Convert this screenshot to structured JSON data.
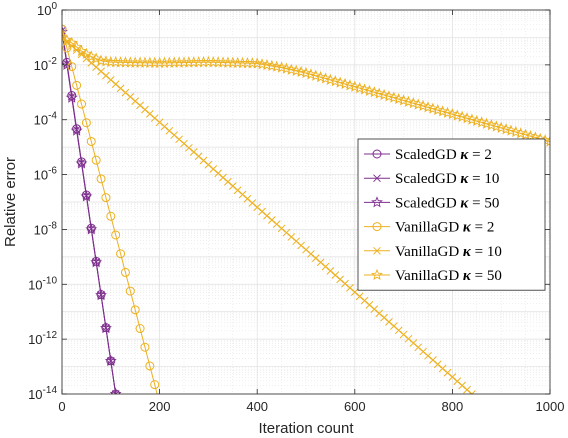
{
  "chart_data": {
    "type": "line",
    "xlabel": "Iteration count",
    "ylabel": "Relative error",
    "xlim": [
      0,
      1000
    ],
    "yscale": "log",
    "ylim_exp": [
      -14,
      0
    ],
    "x_ticks": [
      "0",
      "200",
      "400",
      "600",
      "800",
      "1000"
    ],
    "x_tick_values": [
      0,
      200,
      400,
      600,
      800,
      1000
    ],
    "y_tick_exponents": [
      0,
      -2,
      -4,
      -6,
      -8,
      -10,
      -12,
      -14
    ],
    "y_tick_base": "10",
    "grid": true,
    "minor_grid": true,
    "legend_position": "right",
    "colors": {
      "scaled": "#7e2f8e",
      "vanilla": "#edb120",
      "axis": "#262626",
      "grid": "#dfdfdf"
    },
    "series": [
      {
        "name": "ScaledGD",
        "kappa": "2",
        "color": "#7e2f8e",
        "marker": "circle",
        "log_points": [
          [
            0,
            -0.7
          ],
          [
            110,
            -14
          ]
        ],
        "marker_step": 10
      },
      {
        "name": "ScaledGD",
        "kappa": "10",
        "color": "#7e2f8e",
        "marker": "x",
        "log_points": [
          [
            0,
            -0.75
          ],
          [
            110,
            -14
          ]
        ],
        "marker_step": 10
      },
      {
        "name": "ScaledGD",
        "kappa": "50",
        "color": "#7e2f8e",
        "marker": "star",
        "log_points": [
          [
            0,
            -0.8
          ],
          [
            110,
            -14
          ]
        ],
        "marker_step": 10
      },
      {
        "name": "VanillaGD",
        "kappa": "2",
        "color": "#edb120",
        "marker": "circle",
        "log_points": [
          [
            0,
            -0.7
          ],
          [
            195,
            -14
          ]
        ],
        "marker_step": 10
      },
      {
        "name": "VanillaGD",
        "kappa": "10",
        "color": "#edb120",
        "marker": "x",
        "log_points": [
          [
            0,
            -1.0
          ],
          [
            840,
            -14
          ]
        ],
        "marker_step": 10
      },
      {
        "name": "VanillaGD",
        "kappa": "50",
        "color": "#edb120",
        "marker": "star",
        "log_points": [
          [
            0,
            -1.0
          ],
          [
            20,
            -1.2
          ],
          [
            40,
            -1.5
          ],
          [
            60,
            -1.7
          ],
          [
            80,
            -1.85
          ],
          [
            100,
            -1.9
          ],
          [
            150,
            -1.92
          ],
          [
            200,
            -1.93
          ],
          [
            300,
            -1.9
          ],
          [
            400,
            -1.95
          ],
          [
            450,
            -2.1
          ],
          [
            500,
            -2.3
          ],
          [
            550,
            -2.55
          ],
          [
            600,
            -2.8
          ],
          [
            650,
            -3.05
          ],
          [
            700,
            -3.3
          ],
          [
            750,
            -3.55
          ],
          [
            800,
            -3.8
          ],
          [
            850,
            -4.05
          ],
          [
            900,
            -4.3
          ],
          [
            950,
            -4.55
          ],
          [
            1000,
            -4.8
          ]
        ],
        "marker_step": 10
      }
    ]
  }
}
